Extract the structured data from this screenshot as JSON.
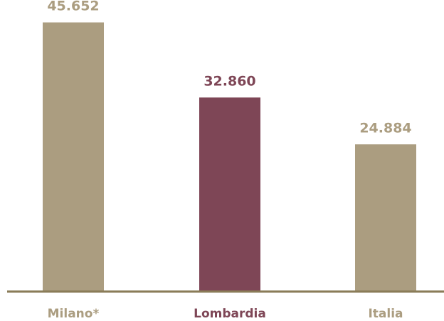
{
  "chart_data": {
    "type": "bar",
    "categories": [
      "Milano*",
      "Lombardia",
      "Italia"
    ],
    "values": [
      45652,
      32860,
      24884
    ],
    "value_labels": [
      "45.652",
      "32.860",
      "24.884"
    ],
    "ylim": [
      0,
      48500
    ],
    "grid": false,
    "legend": "none",
    "colors": {
      "bars": [
        "#ab9d80",
        "#7e4656",
        "#ab9d80"
      ],
      "value_labels": [
        "#ab9d80",
        "#7e4656",
        "#ab9d80"
      ],
      "category_labels": [
        "#ab9d80",
        "#7e4656",
        "#ab9d80"
      ],
      "axis": "#8a7c58"
    }
  }
}
